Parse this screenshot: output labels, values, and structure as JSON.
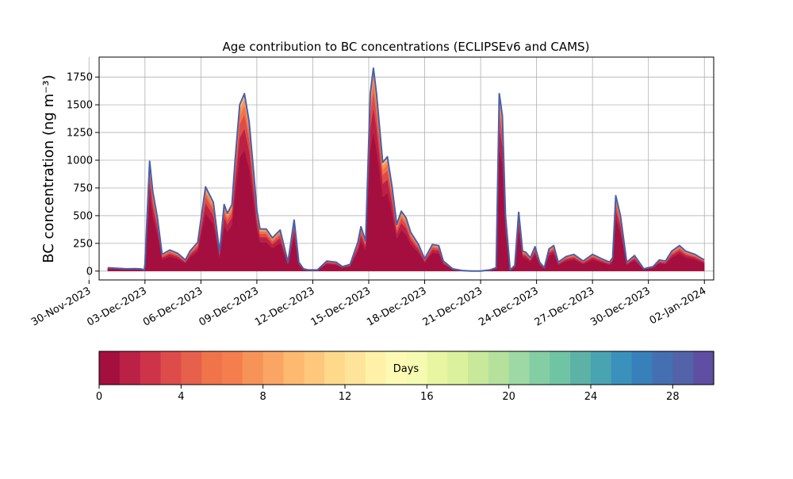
{
  "chart_data": [
    {
      "type": "area",
      "stacked": true,
      "title": "Age contribution to BC concentrations (ECLIPSEv6 and CAMS)",
      "ylabel": "BC concentration (ng m⁻³)",
      "xlabel": "",
      "x_axis_kind": "date",
      "xlim": [
        "2023-11-30T13:00",
        "2024-01-02T12:00"
      ],
      "ylim": [
        -80,
        1930
      ],
      "grid": true,
      "x_ticks": [
        "2023-11-30",
        "2023-12-03",
        "2023-12-06",
        "2023-12-09",
        "2023-12-12",
        "2023-12-15",
        "2023-12-18",
        "2023-12-21",
        "2023-12-24",
        "2023-12-27",
        "2023-12-30",
        "2024-01-02"
      ],
      "x_tick_labels": [
        "30-Nov-2023",
        "03-Dec-2023",
        "06-Dec-2023",
        "09-Dec-2023",
        "12-Dec-2023",
        "15-Dec-2023",
        "18-Dec-2023",
        "21-Dec-2023",
        "24-Dec-2023",
        "27-Dec-2023",
        "30-Dec-2023",
        "02-Jan-2024"
      ],
      "y_ticks": [
        0,
        250,
        500,
        750,
        1000,
        1250,
        1500,
        1750
      ],
      "y_tick_labels": [
        "0",
        "250",
        "500",
        "750",
        "1000",
        "1250",
        "1500",
        "1750"
      ],
      "outline_color": "#4a5fa8",
      "total": {
        "x": [
          "2023-12-01T00:00",
          "2023-12-02T00:00",
          "2023-12-02T12:00",
          "2023-12-02T20:00",
          "2023-12-02T23:00",
          "2023-12-03T00:00",
          "2023-12-03T06:00",
          "2023-12-03T10:00",
          "2023-12-03T16:00",
          "2023-12-03T22:00",
          "2023-12-04T08:00",
          "2023-12-04T18:00",
          "2023-12-05T04:00",
          "2023-12-05T10:00",
          "2023-12-05T20:00",
          "2023-12-06T06:00",
          "2023-12-06T16:00",
          "2023-12-07T00:00",
          "2023-12-07T06:00",
          "2023-12-07T10:00",
          "2023-12-07T16:00",
          "2023-12-07T20:00",
          "2023-12-08T02:00",
          "2023-12-08T08:00",
          "2023-12-08T14:00",
          "2023-12-08T20:00",
          "2023-12-09T00:00",
          "2023-12-09T04:00",
          "2023-12-09T12:00",
          "2023-12-09T20:00",
          "2023-12-10T06:00",
          "2023-12-10T16:00",
          "2023-12-11T00:00",
          "2023-12-11T06:00",
          "2023-12-11T12:00",
          "2023-12-11T18:00",
          "2023-12-12T06:00",
          "2023-12-12T18:00",
          "2023-12-13T06:00",
          "2023-12-13T14:00",
          "2023-12-14T00:00",
          "2023-12-14T10:00",
          "2023-12-14T14:00",
          "2023-12-14T20:00",
          "2023-12-15T02:00",
          "2023-12-15T06:00",
          "2023-12-15T10:00",
          "2023-12-15T18:00",
          "2023-12-16T00:00",
          "2023-12-16T06:00",
          "2023-12-16T12:00",
          "2023-12-16T18:00",
          "2023-12-17T00:00",
          "2023-12-17T06:00",
          "2023-12-17T16:00",
          "2023-12-18T00:00",
          "2023-12-18T10:00",
          "2023-12-18T18:00",
          "2023-12-19T00:00",
          "2023-12-19T12:00",
          "2023-12-20T00:00",
          "2023-12-20T12:00",
          "2023-12-21T00:00",
          "2023-12-21T12:00",
          "2023-12-21T20:00",
          "2023-12-22T00:00",
          "2023-12-22T04:00",
          "2023-12-22T08:00",
          "2023-12-22T14:00",
          "2023-12-22T20:00",
          "2023-12-23T01:00",
          "2023-12-23T06:00",
          "2023-12-23T10:00",
          "2023-12-23T16:00",
          "2023-12-23T22:00",
          "2023-12-24T04:00",
          "2023-12-24T10:00",
          "2023-12-24T16:00",
          "2023-12-24T22:00",
          "2023-12-25T04:00",
          "2023-12-25T14:00",
          "2023-12-26T00:00",
          "2023-12-26T12:00",
          "2023-12-27T00:00",
          "2023-12-27T12:00",
          "2023-12-27T22:00",
          "2023-12-28T02:00",
          "2023-12-28T06:00",
          "2023-12-28T12:00",
          "2023-12-28T20:00",
          "2023-12-29T06:00",
          "2023-12-29T18:00",
          "2023-12-30T06:00",
          "2023-12-30T14:00",
          "2023-12-30T22:00",
          "2023-12-31T06:00",
          "2023-12-31T16:00",
          "2024-01-01T00:00",
          "2024-01-01T12:00",
          "2024-01-02T00:00"
        ],
        "values": [
          30,
          20,
          22,
          18,
          8,
          60,
          990,
          720,
          480,
          150,
          190,
          160,
          100,
          180,
          260,
          760,
          620,
          170,
          600,
          520,
          600,
          1000,
          1500,
          1600,
          1350,
          880,
          550,
          380,
          380,
          300,
          370,
          80,
          460,
          80,
          20,
          10,
          10,
          90,
          80,
          40,
          60,
          260,
          400,
          270,
          1600,
          1830,
          1600,
          980,
          1030,
          760,
          420,
          540,
          480,
          350,
          240,
          110,
          240,
          230,
          90,
          20,
          5,
          0,
          0,
          10,
          30,
          1600,
          1400,
          500,
          10,
          50,
          530,
          180,
          170,
          120,
          220,
          80,
          30,
          200,
          230,
          80,
          130,
          150,
          90,
          150,
          110,
          80,
          120,
          680,
          500,
          80,
          140,
          20,
          40,
          100,
          90,
          180,
          230,
          180,
          150,
          100
        ],
        "unit": "ng m-3"
      },
      "colorbar": {
        "label": "Days",
        "min": 0,
        "max": 30,
        "tick_values": [
          0,
          4,
          8,
          12,
          16,
          20,
          24,
          28
        ],
        "tick_labels": [
          "0",
          "4",
          "8",
          "12",
          "16",
          "20",
          "24",
          "28"
        ],
        "colors": [
          "#a50f3f",
          "#bb2045",
          "#cd3349",
          "#dd4b4a",
          "#e6604b",
          "#f0734a",
          "#f57d4e",
          "#f89358",
          "#fba565",
          "#fdb96f",
          "#fec77c",
          "#fed98b",
          "#fee498",
          "#fff1a8",
          "#fefab5",
          "#f6fbb2",
          "#e9f6a1",
          "#dcf19d",
          "#c9e99a",
          "#b5e19d",
          "#9ed8a4",
          "#85cea4",
          "#6fc4a4",
          "#5cb2a6",
          "#4aa3b1",
          "#3a91bc",
          "#3880bb",
          "#4470b1",
          "#5263a9",
          "#5e4fa2"
        ]
      }
    }
  ]
}
